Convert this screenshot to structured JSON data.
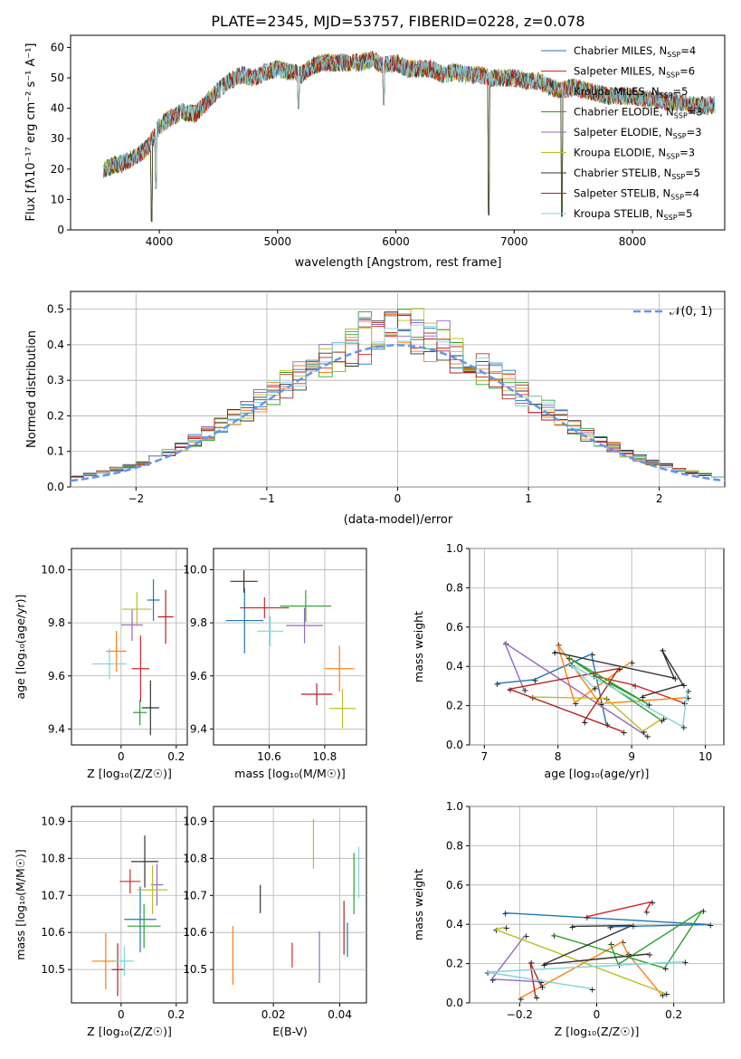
{
  "title": "PLATE=2345, MJD=53757, FIBERID=0228, z=0.078",
  "legend_entries": [
    {
      "name": "Chabrier MILES, N",
      "sub": "SSP",
      "tail": "=4",
      "color": "#1f77b4"
    },
    {
      "name": "Salpeter MILES, N",
      "sub": "SSP",
      "tail": "=6",
      "color": "#d62728"
    },
    {
      "name": "Kroupa MILES, N",
      "sub": "SSP",
      "tail": "=5",
      "color": "#ff7f0e"
    },
    {
      "name": "Chabrier ELODIE, N",
      "sub": "SSP",
      "tail": "=3",
      "color": "#2ca02c"
    },
    {
      "name": "Salpeter ELODIE, N",
      "sub": "SSP",
      "tail": "=3",
      "color": "#9467bd"
    },
    {
      "name": "Kroupa ELODIE, N",
      "sub": "SSP",
      "tail": "=3",
      "color": "#bcbd22"
    },
    {
      "name": "Chabrier STELIB, N",
      "sub": "SSP",
      "tail": "=5",
      "color": "#333333"
    },
    {
      "name": "Salpeter STELIB, N",
      "sub": "SSP",
      "tail": "=4",
      "color": "#b22222"
    },
    {
      "name": "Kroupa STELIB, N",
      "sub": "SSP",
      "tail": "=5",
      "color": "#7fd4e0"
    }
  ],
  "normal_label": "𝒩(0, 1)",
  "chart_data": [
    {
      "id": "spectrum",
      "type": "line",
      "xlabel": "wavelength [Angstrom, rest frame]",
      "ylabel": "Flux [f",
      "ylabel_units": "λ10⁻¹⁷ erg cm⁻² s⁻¹ A⁻¹]",
      "xlim": [
        3250,
        8780
      ],
      "ylim": [
        0,
        64
      ],
      "xticks": [
        4000,
        5000,
        6000,
        7000,
        8000
      ],
      "yticks": [
        0,
        10,
        20,
        30,
        40,
        50,
        60
      ],
      "continuum": [
        [
          3530,
          20
        ],
        [
          3600,
          21
        ],
        [
          3700,
          22
        ],
        [
          3800,
          24
        ],
        [
          3900,
          27
        ],
        [
          4000,
          34
        ],
        [
          4100,
          37
        ],
        [
          4200,
          39
        ],
        [
          4300,
          38
        ],
        [
          4400,
          42
        ],
        [
          4500,
          46
        ],
        [
          4600,
          49
        ],
        [
          4700,
          51
        ],
        [
          4800,
          50
        ],
        [
          4900,
          52
        ],
        [
          5000,
          53
        ],
        [
          5100,
          52
        ],
        [
          5200,
          51
        ],
        [
          5300,
          54
        ],
        [
          5400,
          55
        ],
        [
          5500,
          55
        ],
        [
          5600,
          55
        ],
        [
          5700,
          55
        ],
        [
          5800,
          56
        ],
        [
          5900,
          54
        ],
        [
          6000,
          55
        ],
        [
          6100,
          53
        ],
        [
          6200,
          53
        ],
        [
          6300,
          53
        ],
        [
          6400,
          51
        ],
        [
          6500,
          52
        ],
        [
          6600,
          51
        ],
        [
          6700,
          51
        ],
        [
          6800,
          50
        ],
        [
          6900,
          50
        ],
        [
          7000,
          50
        ],
        [
          7100,
          49
        ],
        [
          7200,
          49
        ],
        [
          7300,
          47
        ],
        [
          7400,
          46
        ],
        [
          7500,
          47
        ],
        [
          7600,
          46
        ],
        [
          7700,
          45
        ],
        [
          7800,
          44
        ],
        [
          7900,
          44
        ],
        [
          8000,
          44
        ],
        [
          8100,
          43
        ],
        [
          8200,
          43
        ],
        [
          8300,
          42
        ],
        [
          8400,
          42
        ],
        [
          8500,
          41
        ],
        [
          8600,
          41
        ],
        [
          8700,
          41
        ]
      ],
      "dips": [
        {
          "x": 3935,
          "y": 0
        },
        {
          "x": 3970,
          "y": 12
        },
        {
          "x": 5175,
          "y": 39
        },
        {
          "x": 5895,
          "y": 40
        },
        {
          "x": 6785,
          "y": 0
        },
        {
          "x": 7405,
          "y": 0
        }
      ]
    },
    {
      "id": "residuals",
      "type": "histogram",
      "xlabel": "(data-model)/error",
      "ylabel": "Normed distribution",
      "xlim": [
        -2.5,
        2.5
      ],
      "ylim": [
        0,
        0.55
      ],
      "xticks": [
        -2,
        -1,
        0,
        1,
        2
      ],
      "yticks": [
        0.0,
        0.1,
        0.2,
        0.3,
        0.4,
        0.5
      ],
      "bin_width": 0.1
    },
    {
      "id": "age_vs_Z",
      "type": "scatter",
      "xlabel": "Z [log₁₀(Z/Z☉)]",
      "ylabel": "age  [log₁₀(age/yr)]",
      "xlim": [
        -0.18,
        0.24
      ],
      "ylim": [
        9.34,
        10.08
      ],
      "xticks": [
        0.0,
        0.2
      ],
      "yticks": [
        9.4,
        9.6,
        9.8,
        10.0
      ]
    },
    {
      "id": "age_vs_mass",
      "type": "scatter",
      "xlabel": "mass [log₁₀(M/M☉)]",
      "ylabel": "",
      "xlim": [
        10.4,
        10.95
      ],
      "ylim": [
        9.34,
        10.08
      ],
      "xticks": [
        10.6,
        10.8
      ],
      "yticks": [
        9.4,
        9.6,
        9.8,
        10.0
      ]
    },
    {
      "id": "weight_vs_age",
      "type": "line",
      "xlabel": "age  [log₁₀(age/yr)]",
      "ylabel": "mass weight",
      "xlim": [
        6.8,
        10.25
      ],
      "ylim": [
        0,
        1
      ],
      "xticks": [
        7,
        8,
        9,
        10
      ],
      "yticks": [
        0.0,
        0.2,
        0.4,
        0.6,
        0.8,
        1.0
      ]
    },
    {
      "id": "mass_vs_Z",
      "type": "scatter",
      "xlabel": "Z [log₁₀(Z/Z☉)]",
      "ylabel": "mass [log₁₀(M/M☉)]",
      "xlim": [
        -0.18,
        0.24
      ],
      "ylim": [
        10.41,
        10.94
      ],
      "xticks": [
        0.0,
        0.2
      ],
      "yticks": [
        10.5,
        10.6,
        10.7,
        10.8,
        10.9
      ]
    },
    {
      "id": "mass_vs_ebv",
      "type": "scatter",
      "xlabel": "E(B-V)",
      "ylabel": "",
      "xlim": [
        0.002,
        0.048
      ],
      "ylim": [
        10.41,
        10.94
      ],
      "xticks": [
        0.02,
        0.04
      ],
      "yticks": [
        10.5,
        10.6,
        10.7,
        10.8,
        10.9
      ]
    },
    {
      "id": "weight_vs_Z",
      "type": "line",
      "xlabel": "Z [log₁₀(Z/Z☉)]",
      "ylabel": "mass weight",
      "xlim": [
        -0.33,
        0.33
      ],
      "ylim": [
        0,
        1
      ],
      "xticks": [
        -0.2,
        0.0,
        0.2
      ],
      "yticks": [
        0.0,
        0.2,
        0.4,
        0.6,
        0.8,
        1.0
      ]
    }
  ],
  "models": [
    {
      "color": "#1f77b4",
      "Z": [
        0.1,
        0.24
      ],
      "age": [
        9.72,
        9.86
      ],
      "mass": [
        10.55,
        10.68
      ],
      "ebv": 0.04,
      "agew": [
        [
          6.95,
          0.0
        ],
        [
          8.95,
          0.12
        ],
        [
          9.35,
          0.45
        ],
        [
          9.6,
          0.47
        ],
        [
          9.85,
          0.18
        ],
        [
          10.0,
          0.12
        ]
      ],
      "zw": [
        [
          -0.3,
          0.42
        ],
        [
          0.0,
          0.0
        ],
        [
          0.3,
          0.12
        ],
        [
          0.3,
          0.47
        ]
      ]
    },
    {
      "color": "#ff7f0e",
      "Z": [
        0.07,
        0.22
      ],
      "age": [
        9.88,
        10.04
      ],
      "mass": [
        10.8,
        10.94
      ],
      "ebv": 0.006,
      "agew": [
        [
          9.2,
          0.07
        ],
        [
          9.5,
          0.15
        ],
        [
          9.9,
          0.28
        ],
        [
          10.05,
          0.44
        ]
      ],
      "zw": [
        [
          -0.3,
          0.45
        ],
        [
          0.3,
          0.03
        ]
      ]
    }
  ]
}
